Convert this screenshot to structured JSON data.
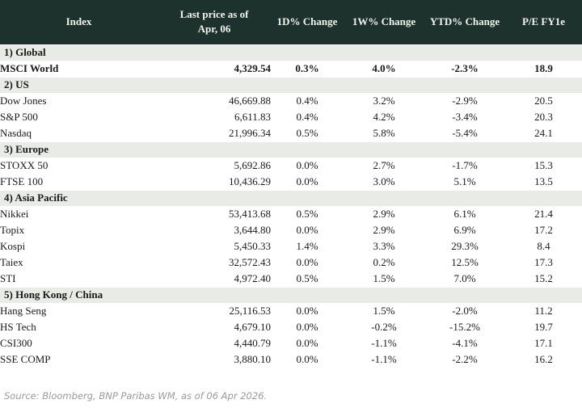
{
  "header": {
    "index": "Index",
    "last_price_line1": "Last price as of",
    "last_price_line2": "Apr, 06",
    "d1": "1D% Change",
    "w1": "1W% Change",
    "ytd": "YTD% Change",
    "pe": "P/E FY1e"
  },
  "colors": {
    "header_bg": "#1e322d",
    "section_bg": "#e9ebe7",
    "positive": "#008a38",
    "negative": "#c8102e",
    "neutral": "#1a1a1a",
    "pe_green": "#00843d"
  },
  "sections": [
    {
      "label": "1) Global",
      "rows": [
        {
          "name": "MSCI World",
          "price": "4,329.54",
          "d1": "0.3%",
          "d1_s": "up",
          "w1": "4.0%",
          "w1_s": "up",
          "ytd": "-2.3%",
          "ytd_s": "down",
          "pe": "18.9",
          "bold": true
        }
      ]
    },
    {
      "label": "2) US",
      "rows": [
        {
          "name": "Dow Jones",
          "price": "46,669.88",
          "d1": "0.4%",
          "d1_s": "up",
          "w1": "3.2%",
          "w1_s": "up",
          "ytd": "-2.9%",
          "ytd_s": "down",
          "pe": "20.5"
        },
        {
          "name": "S&P 500",
          "price": "6,611.83",
          "d1": "0.4%",
          "d1_s": "up",
          "w1": "4.2%",
          "w1_s": "up",
          "ytd": "-3.4%",
          "ytd_s": "down",
          "pe": "20.3"
        },
        {
          "name": "Nasdaq",
          "price": "21,996.34",
          "d1": "0.5%",
          "d1_s": "up",
          "w1": "5.8%",
          "w1_s": "up",
          "ytd": "-5.4%",
          "ytd_s": "down",
          "pe": "24.1"
        }
      ]
    },
    {
      "label": "3) Europe",
      "rows": [
        {
          "name": "STOXX 50",
          "price": "5,692.86",
          "d1": "0.0%",
          "d1_s": "flat",
          "w1": "2.7%",
          "w1_s": "up",
          "ytd": "-1.7%",
          "ytd_s": "down",
          "pe": "15.3"
        },
        {
          "name": "FTSE 100",
          "price": "10,436.29",
          "d1": "0.0%",
          "d1_s": "flat",
          "w1": "3.0%",
          "w1_s": "up",
          "ytd": "5.1%",
          "ytd_s": "up",
          "pe": "13.5"
        }
      ]
    },
    {
      "label": "4) Asia Pacific",
      "rows": [
        {
          "name": "Nikkei",
          "price": "53,413.68",
          "d1": "0.5%",
          "d1_s": "up",
          "w1": "2.9%",
          "w1_s": "up",
          "ytd": "6.1%",
          "ytd_s": "up",
          "pe": "21.4"
        },
        {
          "name": "Topix",
          "price": "3,644.80",
          "d1": "0.0%",
          "d1_s": "down",
          "w1": "2.9%",
          "w1_s": "up",
          "ytd": "6.9%",
          "ytd_s": "up",
          "pe": "17.2"
        },
        {
          "name": "Kospi",
          "price": "5,450.33",
          "d1": "1.4%",
          "d1_s": "up",
          "w1": "3.3%",
          "w1_s": "up",
          "ytd": "29.3%",
          "ytd_s": "up",
          "pe": "8.4"
        },
        {
          "name": "Taiex",
          "price": "32,572.43",
          "d1": "0.0%",
          "d1_s": "flat",
          "w1": "0.2%",
          "w1_s": "up",
          "ytd": "12.5%",
          "ytd_s": "up",
          "pe": "17.3"
        },
        {
          "name": "STI",
          "price": "4,972.40",
          "d1": "0.5%",
          "d1_s": "up",
          "w1": "1.5%",
          "w1_s": "up",
          "ytd": "7.0%",
          "ytd_s": "up",
          "pe": "15.2"
        }
      ]
    },
    {
      "label": "5) Hong Kong / China",
      "rows": [
        {
          "name": "Hang Seng",
          "price": "25,116.53",
          "d1": "0.0%",
          "d1_s": "flat",
          "w1": "1.5%",
          "w1_s": "up",
          "ytd": "-2.0%",
          "ytd_s": "down",
          "pe": "11.2"
        },
        {
          "name": "HS Tech",
          "price": "4,679.10",
          "d1": "0.0%",
          "d1_s": "flat",
          "w1": "-0.2%",
          "w1_s": "down",
          "ytd": "-15.2%",
          "ytd_s": "down",
          "pe": "19.7"
        },
        {
          "name": "CSI300",
          "price": "4,440.79",
          "d1": "0.0%",
          "d1_s": "flat",
          "w1": "-1.1%",
          "w1_s": "down",
          "ytd": "-4.1%",
          "ytd_s": "down",
          "pe": "17.1"
        },
        {
          "name": "SSE COMP",
          "price": "3,880.10",
          "d1": "0.0%",
          "d1_s": "flat",
          "w1": "-1.1%",
          "w1_s": "down",
          "ytd": "-2.2%",
          "ytd_s": "down",
          "pe": "16.2"
        }
      ]
    }
  ],
  "source": "Source: Bloomberg, BNP Paribas WM, as of 06 Apr 2026."
}
